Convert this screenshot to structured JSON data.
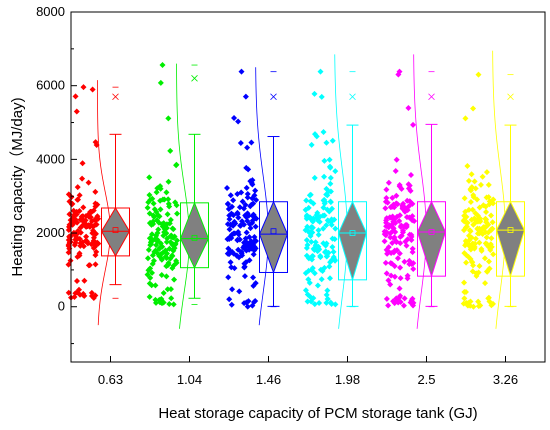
{
  "chart_data": {
    "type": "box-violin-scatter",
    "xlabel": "Heat storage capacity of PCM storage tank (GJ)",
    "ylabel": "Heating capacity（MJ/day)",
    "ylim": [
      -1500,
      8000
    ],
    "yticks": [
      0,
      2000,
      4000,
      6000,
      8000
    ],
    "categories": [
      "0.63",
      "1.04",
      "1.46",
      "1.98",
      "2.5",
      "3.26"
    ],
    "series": [
      {
        "category": "0.63",
        "color": "#ff0000",
        "q1": 1380,
        "median": 2050,
        "q3": 2680,
        "mean": 2080,
        "whisker_low": 600,
        "whisker_high": 4680,
        "min": 230,
        "max": 5960,
        "outlier": 5700,
        "violin_low": -500,
        "violin_high": 6150
      },
      {
        "category": "1.04",
        "color": "#00ee00",
        "q1": 1060,
        "median": 1850,
        "q3": 2820,
        "mean": 1870,
        "whisker_low": 230,
        "whisker_high": 4680,
        "min": 60,
        "max": 6560,
        "outlier": 6200,
        "violin_low": -600,
        "violin_high": 6600
      },
      {
        "category": "1.46",
        "color": "#0000ff",
        "q1": 930,
        "median": 1970,
        "q3": 2850,
        "mean": 2050,
        "whisker_low": 10,
        "whisker_high": 4620,
        "min": 0,
        "max": 6380,
        "outlier": 5700,
        "violin_low": -500,
        "violin_high": 6500
      },
      {
        "category": "1.98",
        "color": "#00ffff",
        "q1": 730,
        "median": 2000,
        "q3": 2850,
        "mean": 2000,
        "whisker_low": 10,
        "whisker_high": 4930,
        "min": 0,
        "max": 6380,
        "outlier": 5700,
        "violin_low": -600,
        "violin_high": 6850
      },
      {
        "category": "2.5",
        "color": "#ff00ff",
        "q1": 830,
        "median": 2030,
        "q3": 2850,
        "mean": 2030,
        "whisker_low": 10,
        "whisker_high": 4950,
        "min": 0,
        "max": 6380,
        "outlier": 5700,
        "violin_low": -600,
        "violin_high": 6850
      },
      {
        "category": "3.26",
        "color": "#ffff00",
        "q1": 830,
        "median": 2080,
        "q3": 2850,
        "mean": 2080,
        "whisker_low": 10,
        "whisker_high": 4930,
        "min": 0,
        "max": 6300,
        "outlier": 5700,
        "violin_low": -600,
        "violin_high": 6950
      }
    ]
  }
}
